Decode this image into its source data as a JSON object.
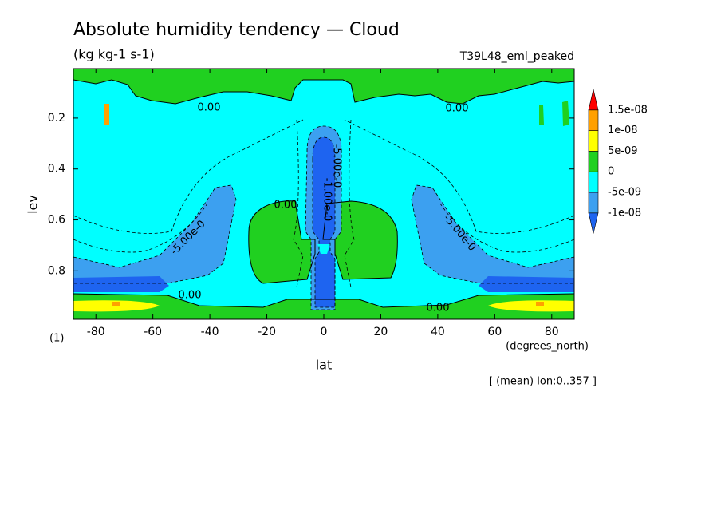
{
  "chart_data": {
    "type": "contour",
    "title": "Absolute humidity tendency — Cloud",
    "subtitle": "(kg kg-1 s-1)",
    "run_label": "T39L48_eml_peaked",
    "x_label": "lat",
    "x_units": "(degrees_north)",
    "y_label": "lev",
    "y_units": "(1)",
    "footnote": "[ (mean) lon:0..357 ]",
    "xlim": [
      -87.9,
      87.9
    ],
    "xticks": [
      -80,
      -60,
      -40,
      -20,
      0,
      20,
      40,
      60,
      80
    ],
    "ylim": [
      0.006,
      0.99
    ],
    "y_inverted": true,
    "yticks": [
      0.2,
      0.4,
      0.6,
      0.8
    ],
    "levels": [
      -1e-08,
      -5e-09,
      0,
      5e-09,
      1e-08,
      1.5e-08
    ],
    "level_labels": [
      "-1e-08",
      "-5e-09",
      "0",
      "5e-09",
      "1e-08",
      "1.5e-08"
    ],
    "colors": [
      "#1e64f0",
      "#3ca0f0",
      "#00ffff",
      "#20d020",
      "#ffff00",
      "#ffa000",
      "#ff0000"
    ],
    "contour_labels": [
      "0.00",
      "0.00",
      "0.00",
      "0.00",
      "0.00",
      "-5.00e-0",
      "-5.00e-0",
      "-1.00e-0",
      "-5.00e-0"
    ]
  }
}
